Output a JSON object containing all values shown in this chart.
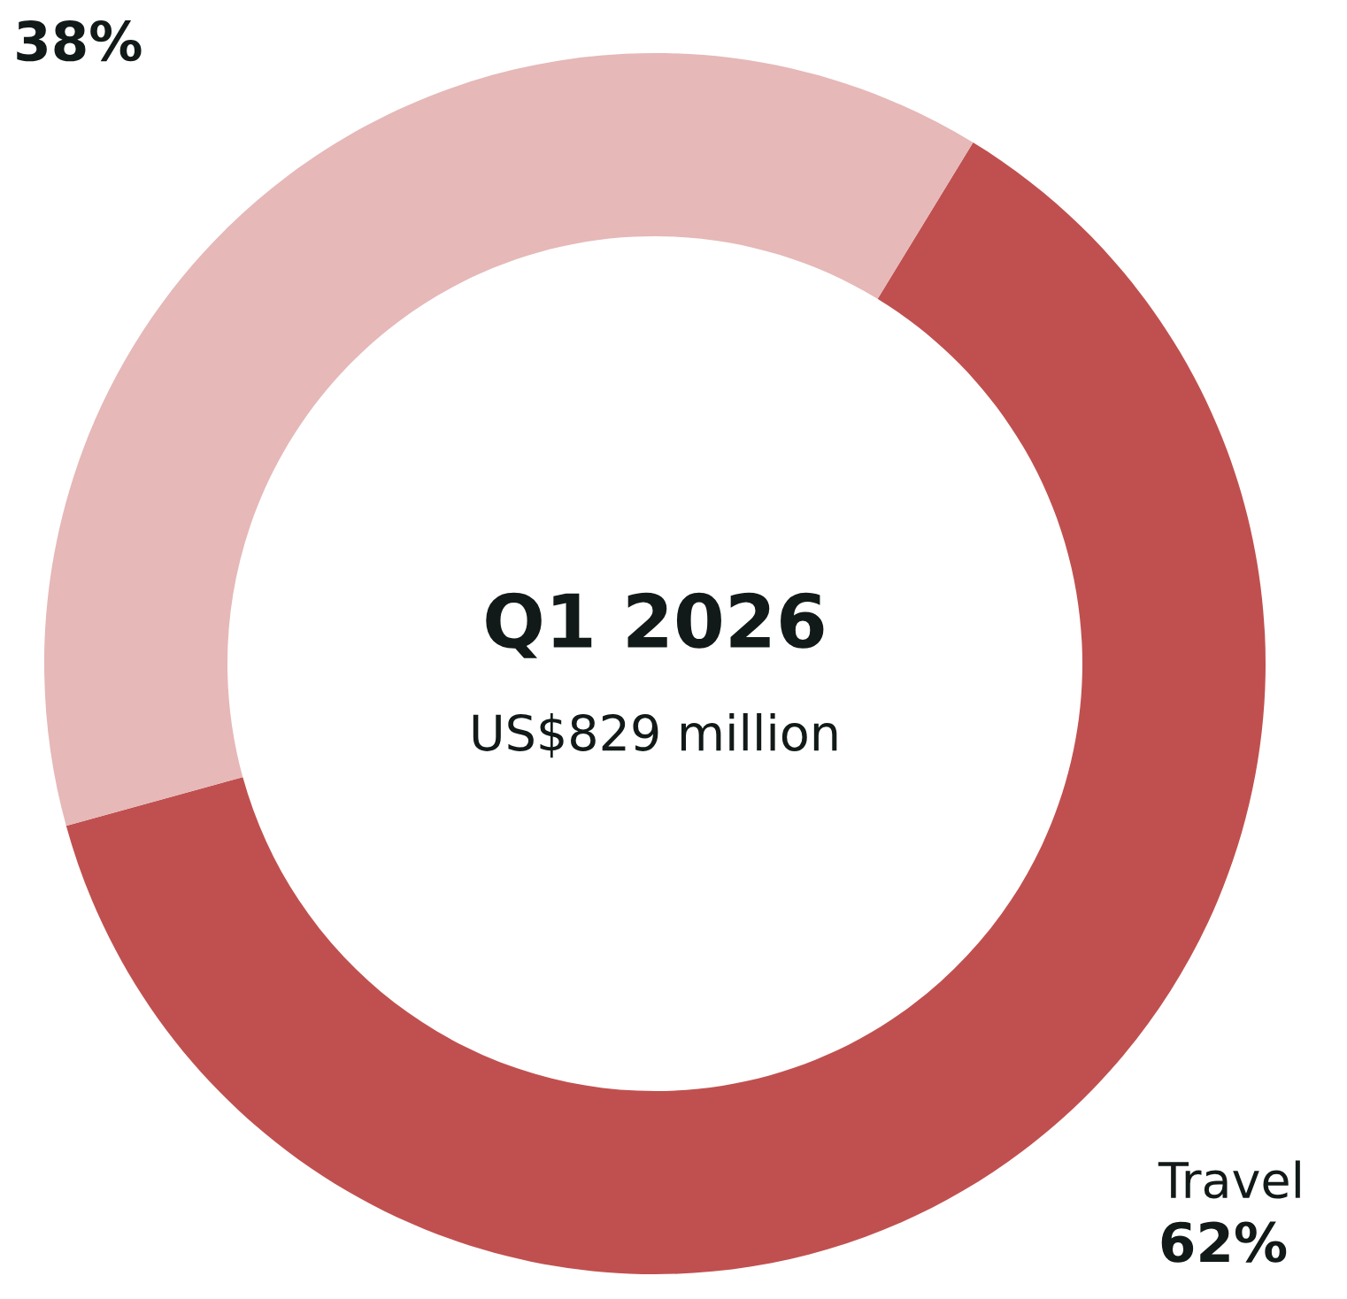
{
  "chart_data": {
    "type": "donut",
    "title": "Q1 2026",
    "subtitle": "US$829 million",
    "categories": [
      "Travel",
      null
    ],
    "values": [
      62,
      38
    ],
    "colors": [
      "#c0504f",
      "#e6b8b8"
    ],
    "value_labels": [
      "62%",
      "38%"
    ]
  }
}
